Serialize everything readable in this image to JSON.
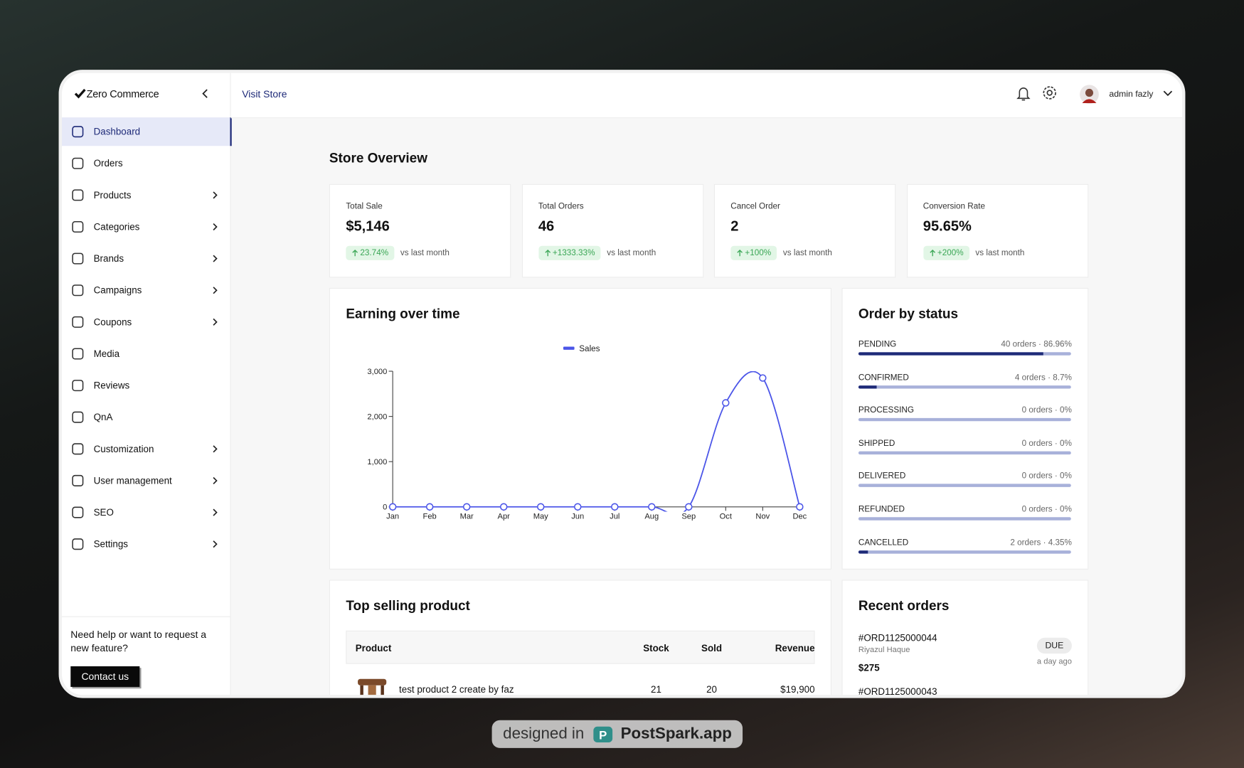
{
  "header": {
    "logo": "Zero Commerce",
    "link": "Visit Store",
    "user": "admin fazly"
  },
  "sidebar": {
    "items": [
      {
        "label": "Dashboard",
        "active": true,
        "submenu": false
      },
      {
        "label": "Orders",
        "active": false,
        "submenu": false
      },
      {
        "label": "Products",
        "active": false,
        "submenu": true
      },
      {
        "label": "Categories",
        "active": false,
        "submenu": true
      },
      {
        "label": "Brands",
        "active": false,
        "submenu": true
      },
      {
        "label": "Campaigns",
        "active": false,
        "submenu": true
      },
      {
        "label": "Coupons",
        "active": false,
        "submenu": true
      },
      {
        "label": "Media",
        "active": false,
        "submenu": false
      },
      {
        "label": "Reviews",
        "active": false,
        "submenu": false
      },
      {
        "label": "QnA",
        "active": false,
        "submenu": false
      },
      {
        "label": "Customization",
        "active": false,
        "submenu": true
      },
      {
        "label": "User management",
        "active": false,
        "submenu": true
      },
      {
        "label": "SEO",
        "active": false,
        "submenu": true
      },
      {
        "label": "Settings",
        "active": false,
        "submenu": true
      }
    ],
    "help": "Need help or want to request a new feature?",
    "button": "Contact us"
  },
  "overview": {
    "title": "Store Overview",
    "cards": [
      {
        "label": "Total Sale",
        "value": "$5,146",
        "change": "23.74%",
        "note": "vs last month"
      },
      {
        "label": "Total Orders",
        "value": "46",
        "change": "+1333.33%",
        "note": "vs last month"
      },
      {
        "label": "Cancel Order",
        "value": "2",
        "change": "+100%",
        "note": "vs last month"
      },
      {
        "label": "Conversion Rate",
        "value": "95.65%",
        "change": "+200%",
        "note": "vs last month"
      }
    ]
  },
  "chart_data": {
    "type": "line",
    "title": "Earning over time",
    "categories": [
      "Jan",
      "Feb",
      "Mar",
      "Apr",
      "May",
      "Jun",
      "Jul",
      "Aug",
      "Sep",
      "Oct",
      "Nov",
      "Dec"
    ],
    "series": [
      {
        "name": "Sales",
        "color": "#4b55e8",
        "values": [
          0,
          0,
          0,
          0,
          0,
          0,
          0,
          0,
          0,
          2300,
          2850,
          0
        ]
      }
    ],
    "ylim": [
      0,
      3000
    ],
    "yticks": [
      0,
      {
        "value": 1000,
        "label": "1,000"
      },
      {
        "value": 2000,
        "label": "2,000"
      },
      {
        "value": 3000,
        "label": "3,000"
      }
    ]
  },
  "order_status": {
    "title": "Order by status",
    "rows": [
      {
        "status": "PENDING",
        "detail": "40 orders · 86.96%",
        "percent": 86.96
      },
      {
        "status": "CONFIRMED",
        "detail": "4 orders · 8.7%",
        "percent": 8.7
      },
      {
        "status": "PROCESSING",
        "detail": "0 orders · 0%",
        "percent": 0
      },
      {
        "status": "SHIPPED",
        "detail": "0 orders · 0%",
        "percent": 0
      },
      {
        "status": "DELIVERED",
        "detail": "0 orders · 0%",
        "percent": 0
      },
      {
        "status": "REFUNDED",
        "detail": "0 orders · 0%",
        "percent": 0
      },
      {
        "status": "CANCELLED",
        "detail": "2 orders · 4.35%",
        "percent": 4.35
      }
    ]
  },
  "top_products": {
    "title": "Top selling product",
    "columns": [
      "Product",
      "Stock",
      "Sold",
      "Revenue"
    ],
    "rows": [
      [
        "test product 2 create by faz",
        21,
        20,
        "$19,900"
      ]
    ]
  },
  "recent_orders": {
    "title": "Recent orders",
    "orders": [
      {
        "id": "#ORD1125000044",
        "customer": "Riyazul Haque",
        "amount": "$275",
        "status": "DUE",
        "time": "a day ago"
      },
      {
        "id": "#ORD1125000043"
      }
    ]
  },
  "badge": {
    "prefix": "designed in",
    "brand": "PostSpark.app"
  }
}
